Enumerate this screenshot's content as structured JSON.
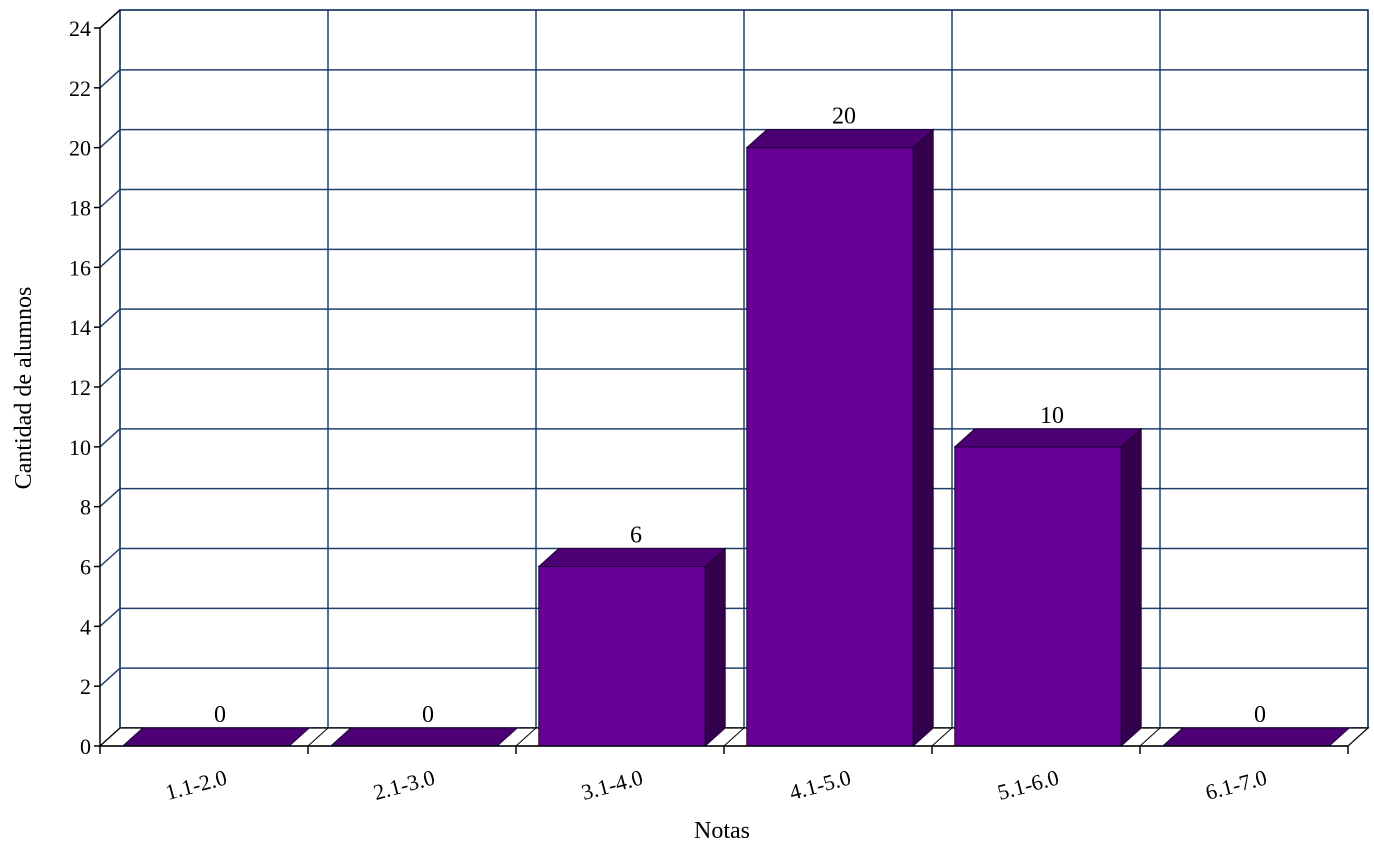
{
  "chart_data": {
    "type": "bar",
    "categories": [
      "1.1-2.0",
      "2.1-3.0",
      "3.1-4.0",
      "4.1-5.0",
      "5.1-6.0",
      "6.1-7.0"
    ],
    "values": [
      0,
      0,
      6,
      20,
      10,
      0
    ],
    "title": "",
    "xlabel": "Notas",
    "ylabel": "Cantidad de alumnos",
    "ylim": [
      0,
      24
    ],
    "ytick_step": 2,
    "grid": true,
    "legend": "none",
    "style_3d": true,
    "colors": {
      "bar_front": "#660099",
      "bar_top": "#4d0073",
      "bar_side": "#33004d",
      "grid": "#1f3f6b",
      "axis": "#000000"
    }
  }
}
